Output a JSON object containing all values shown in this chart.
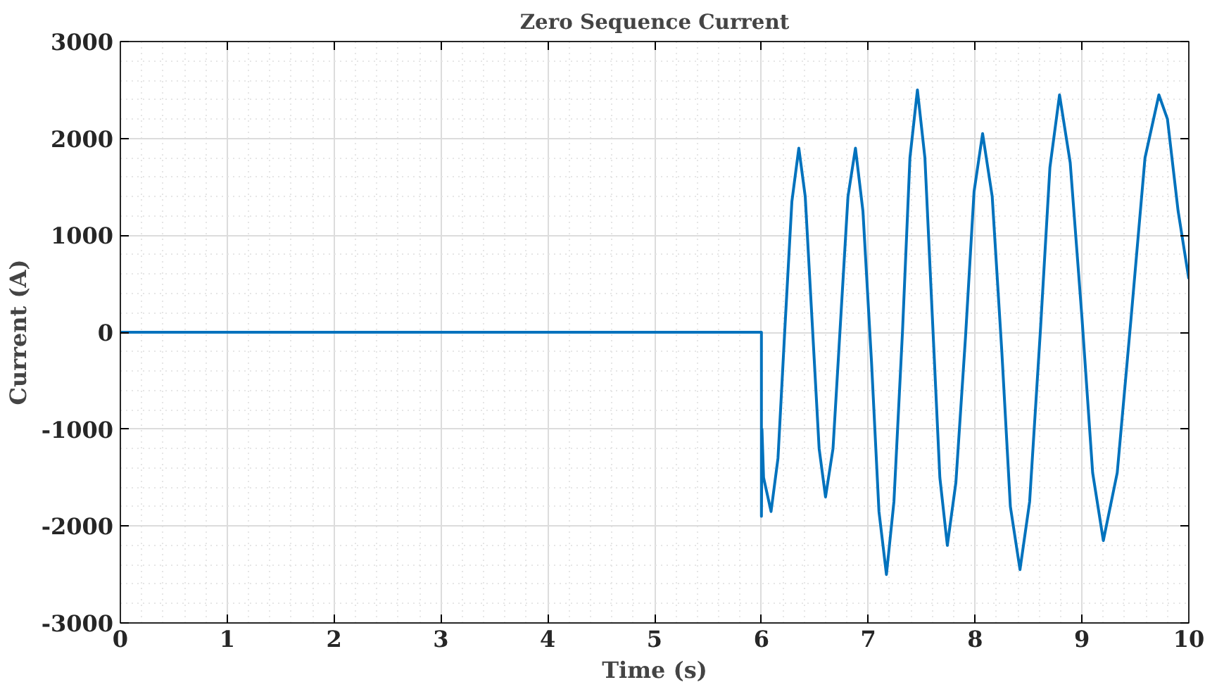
{
  "chart_data": {
    "type": "line",
    "title": "Zero Sequence Current",
    "xlabel": "Time (s)",
    "ylabel": "Current (A)",
    "xlim": [
      0,
      10
    ],
    "ylim": [
      -3000,
      3000
    ],
    "xticks": [
      0,
      1,
      2,
      3,
      4,
      5,
      6,
      7,
      8,
      9,
      10
    ],
    "yticks": [
      -3000,
      -2000,
      -1000,
      0,
      1000,
      2000,
      3000
    ],
    "grid": true,
    "marker": "none",
    "line_style": "solid",
    "series": [
      {
        "color": "#0072bd",
        "x": [
          0,
          6.0,
          6.0,
          6.005,
          6.02,
          6.09,
          6.155,
          6.22,
          6.285,
          6.35,
          6.41,
          6.475,
          6.54,
          6.6,
          6.67,
          6.74,
          6.81,
          6.88,
          6.95,
          7.03,
          7.1,
          7.17,
          7.24,
          7.32,
          7.39,
          7.46,
          7.53,
          7.6,
          7.67,
          7.74,
          7.82,
          7.91,
          7.99,
          8.07,
          8.16,
          8.25,
          8.33,
          8.42,
          8.51,
          8.61,
          8.7,
          8.79,
          8.89,
          9.0,
          9.1,
          9.2,
          9.33,
          9.46,
          9.59,
          9.72,
          9.8,
          9.9,
          10
        ],
        "values": [
          0,
          0,
          -1900,
          -1000,
          -1500,
          -1850,
          -1300,
          50,
          1350,
          1900,
          1400,
          100,
          -1200,
          -1700,
          -1200,
          100,
          1400,
          1900,
          1250,
          -300,
          -1850,
          -2500,
          -1750,
          0,
          1800,
          2500,
          1800,
          150,
          -1500,
          -2200,
          -1550,
          -50,
          1450,
          2050,
          1400,
          -200,
          -1800,
          -2450,
          -1750,
          0,
          1700,
          2450,
          1750,
          150,
          -1450,
          -2150,
          -1450,
          150,
          1800,
          2450,
          2200,
          1250,
          550
        ]
      }
    ]
  }
}
